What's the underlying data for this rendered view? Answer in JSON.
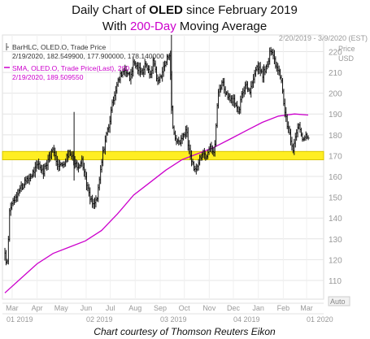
{
  "chart_data": {
    "type": "ohlc",
    "title_parts": [
      {
        "text": "Daily Chart of ",
        "bold": false,
        "color": "#111111"
      },
      {
        "text": "OLED",
        "bold": true,
        "color": "#111111"
      },
      {
        "text": " since February 2019",
        "bold": false,
        "color": "#111111"
      }
    ],
    "subtitle_parts": [
      {
        "text": "With ",
        "bold": false,
        "color": "#111111"
      },
      {
        "text": "200-Day",
        "bold": false,
        "color": "#cc00cc"
      },
      {
        "text": " Moving Average",
        "bold": false,
        "color": "#111111"
      }
    ],
    "caption": "Chart courtesy of Thomson Reuters Eikon",
    "date_range": "2/20/2019 - 3/9/2020 (EST)",
    "price_header": "Price",
    "price_unit": "USD",
    "y_ticks": [
      110,
      120,
      130,
      140,
      150,
      160,
      170,
      180,
      190,
      200,
      210,
      220
    ],
    "ylim": [
      101,
      228
    ],
    "month_labels": [
      "Mar",
      "Apr",
      "May",
      "Jun",
      "Jul",
      "Aug",
      "Sep",
      "Oct",
      "Nov",
      "Dec",
      "Jan",
      "Feb",
      "Mar"
    ],
    "quarter_labels": [
      "01 2019",
      "02 2019",
      "03 2019",
      "04 2019",
      "01 2020"
    ],
    "auto_label": "Auto",
    "legend": [
      {
        "kind": "bar",
        "line1": "BarHLC, OLED.O, Trade Price",
        "line2": "2/19/2020, 182.549900, 177.900000, 178.140000"
      },
      {
        "kind": "sma",
        "line1": "SMA, OLED.O, Trade Price(Last),  200",
        "line2": "2/19/2020, 189.509550"
      }
    ],
    "support_band": [
      168,
      172
    ],
    "colors": {
      "bars": "#111111",
      "sma": "#cc00cc",
      "band": "#ffee22",
      "band_edge": "#d7c400",
      "grid": "#e4e4e4",
      "axis_text": "#999999",
      "title_accent": "#cc00cc"
    },
    "price_path": [
      [
        0,
        122
      ],
      [
        3,
        118
      ],
      [
        6,
        145
      ],
      [
        12,
        150
      ],
      [
        20,
        155
      ],
      [
        28,
        158
      ],
      [
        35,
        162
      ],
      [
        42,
        166
      ],
      [
        48,
        162
      ],
      [
        55,
        170
      ],
      [
        60,
        172
      ],
      [
        65,
        167
      ],
      [
        70,
        165
      ],
      [
        75,
        168
      ],
      [
        80,
        172
      ],
      [
        85,
        168
      ],
      [
        90,
        165
      ],
      [
        95,
        168
      ],
      [
        100,
        160
      ],
      [
        105,
        150
      ],
      [
        110,
        146
      ],
      [
        115,
        150
      ],
      [
        118,
        160
      ],
      [
        122,
        172
      ],
      [
        126,
        180
      ],
      [
        130,
        186
      ],
      [
        135,
        198
      ],
      [
        140,
        205
      ],
      [
        145,
        210
      ],
      [
        150,
        212
      ],
      [
        155,
        207
      ],
      [
        160,
        215
      ],
      [
        165,
        212
      ],
      [
        170,
        210
      ],
      [
        175,
        215
      ],
      [
        180,
        208
      ],
      [
        185,
        216
      ],
      [
        190,
        205
      ],
      [
        195,
        210
      ],
      [
        200,
        215
      ],
      [
        205,
        220
      ],
      [
        208,
        185
      ],
      [
        212,
        178
      ],
      [
        218,
        176
      ],
      [
        225,
        183
      ],
      [
        230,
        170
      ],
      [
        235,
        163
      ],
      [
        240,
        165
      ],
      [
        245,
        172
      ],
      [
        250,
        170
      ],
      [
        255,
        176
      ],
      [
        260,
        170
      ],
      [
        265,
        200
      ],
      [
        270,
        206
      ],
      [
        275,
        200
      ],
      [
        280,
        196
      ],
      [
        285,
        196
      ],
      [
        290,
        190
      ],
      [
        295,
        200
      ],
      [
        300,
        205
      ],
      [
        305,
        200
      ],
      [
        310,
        210
      ],
      [
        315,
        213
      ],
      [
        320,
        208
      ],
      [
        325,
        213
      ],
      [
        330,
        220
      ],
      [
        335,
        216
      ],
      [
        340,
        210
      ],
      [
        343,
        208
      ],
      [
        346,
        197
      ],
      [
        350,
        186
      ],
      [
        354,
        180
      ],
      [
        358,
        172
      ],
      [
        362,
        180
      ],
      [
        366,
        184
      ],
      [
        370,
        178
      ],
      [
        374,
        181
      ],
      [
        377,
        178
      ]
    ],
    "sma_path": [
      [
        0,
        104
      ],
      [
        20,
        111
      ],
      [
        40,
        118
      ],
      [
        60,
        123
      ],
      [
        80,
        126
      ],
      [
        100,
        129
      ],
      [
        120,
        134
      ],
      [
        140,
        142
      ],
      [
        160,
        151
      ],
      [
        180,
        157
      ],
      [
        200,
        163
      ],
      [
        220,
        168
      ],
      [
        240,
        171
      ],
      [
        260,
        174
      ],
      [
        280,
        178
      ],
      [
        300,
        182
      ],
      [
        320,
        186
      ],
      [
        340,
        189
      ],
      [
        360,
        190
      ],
      [
        377,
        189.5
      ]
    ]
  }
}
